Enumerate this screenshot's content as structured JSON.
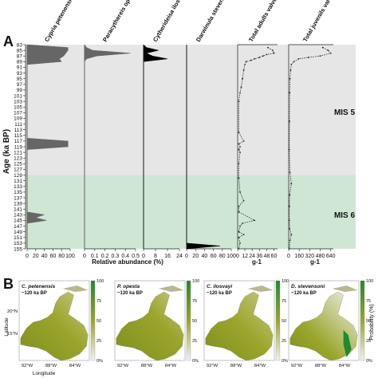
{
  "panel_a": {
    "label": "A",
    "y_axis_label": "Age (ka BP)",
    "x_axis_label_relative": "Relative abundance (%)",
    "x_axis_label_valves_1": "g-1",
    "x_axis_label_valves_2": "g-1",
    "zones": [
      {
        "label": "MIS 5",
        "from": 83,
        "to": 129,
        "color": "#e6e6e6"
      },
      {
        "label": "MIS 6",
        "from": 129,
        "to": 155,
        "color": "#cfe6d4"
      }
    ]
  },
  "panel_b": {
    "label": "B",
    "maps": [
      {
        "species": "C. petenensis",
        "age": "~120 ka BP"
      },
      {
        "species": "P. opesta",
        "age": "~120 ka BP"
      },
      {
        "species": "C. ilosvayi",
        "age": "~120 ka BP"
      },
      {
        "species": "D. stevensoni",
        "age": "~120 ka BP"
      }
    ],
    "lon_ticks": [
      "92°W",
      "88°W",
      "84°W"
    ],
    "lat_ticks": [
      "20°N",
      "15°N"
    ],
    "latitude_label": "Latitude",
    "longitude_label": "Longitude",
    "colorbar_ticks": [
      "100",
      "75",
      "50",
      "25",
      "0%"
    ],
    "colorbar_label": "Probability (%)",
    "colors": {
      "high": "#1f8a2e",
      "mid": "#9aa52a",
      "low": "#f2f2f2",
      "land_high": "#7f8f1f"
    }
  },
  "chart_data": [
    {
      "type": "area",
      "title": "Cypria petenensis",
      "xlabel": "Relative abundance (%)",
      "ylabel": "Age (ka BP)",
      "xticks": [
        "0",
        "20",
        "40",
        "60",
        "80",
        "100"
      ],
      "xlim": [
        0,
        100
      ],
      "ylim": [
        83,
        155
      ],
      "color": "#666666",
      "x": [
        0,
        95,
        95,
        90,
        85,
        75,
        80,
        0,
        0,
        0,
        95,
        95,
        0,
        0,
        0,
        40,
        20,
        45,
        0,
        0
      ],
      "y": [
        83,
        84,
        85,
        86,
        87,
        88,
        89,
        90,
        100,
        116,
        117,
        119,
        120,
        141,
        142,
        143,
        144,
        145,
        146,
        155
      ]
    },
    {
      "type": "area",
      "title": "Paracythereis opesta",
      "xlabel": "Relative abundance (%)",
      "ylabel": "Age (ka BP)",
      "xticks": [
        "0",
        "0.1",
        "0.2",
        "0.3",
        "0.4",
        "0.5"
      ],
      "xlim": [
        0,
        0.5
      ],
      "ylim": [
        83,
        155
      ],
      "color": "#666666",
      "x": [
        0,
        0.02,
        0.08,
        0.45,
        0.12,
        0.02,
        0,
        0
      ],
      "y": [
        83,
        84,
        85,
        86,
        87,
        88,
        89,
        155
      ]
    },
    {
      "type": "area",
      "title": "Cytherideisa ilosvayi",
      "xlabel": "Relative abundance (%)",
      "ylabel": "Age (ka BP)",
      "xticks": [
        "0",
        "8",
        "16",
        "24"
      ],
      "xlim": [
        0,
        24
      ],
      "ylim": [
        83,
        155
      ],
      "color": "#000000",
      "x": [
        0,
        2,
        10,
        2,
        6,
        16,
        0,
        0
      ],
      "y": [
        83,
        84,
        85,
        86,
        87,
        88,
        89,
        155
      ]
    },
    {
      "type": "area",
      "title": "Darwinula stevensoni",
      "xlabel": "Relative abundance (%)",
      "ylabel": "Age (ka BP)",
      "xticks": [
        "0",
        "20",
        "40",
        "60",
        "80",
        "100"
      ],
      "xlim": [
        0,
        100
      ],
      "ylim": [
        83,
        155
      ],
      "color": "#000000",
      "x": [
        0,
        0,
        75,
        0
      ],
      "y": [
        83,
        153,
        154,
        155
      ]
    },
    {
      "type": "line",
      "title": "Total adults valves",
      "xlabel": "g-1",
      "ylabel": "Age (ka BP)",
      "xticks": [
        "0",
        "12",
        "24",
        "36",
        "48",
        "60"
      ],
      "xlim": [
        0,
        66
      ],
      "ylim": [
        83,
        155
      ],
      "color": "#333333",
      "x": [
        50,
        58,
        60,
        48,
        42,
        36,
        28,
        22,
        14,
        12,
        10,
        8,
        6,
        4,
        2,
        2,
        10,
        2,
        4,
        2,
        4,
        2,
        2,
        4,
        10,
        2,
        2,
        28,
        8,
        4,
        2,
        10,
        2,
        4,
        2
      ],
      "y": [
        84,
        85,
        86,
        86.5,
        87,
        87.5,
        88,
        88.5,
        89,
        90,
        92,
        95,
        98,
        100,
        103,
        114,
        117,
        118,
        119,
        120,
        121,
        125,
        130,
        135,
        138,
        140,
        142,
        145,
        146,
        147,
        149,
        150,
        151,
        153,
        155
      ]
    },
    {
      "type": "line",
      "title": "Total juvenils valves",
      "xlabel": "g-1",
      "ylabel": "Age (ka BP)",
      "xticks": [
        "0",
        "160",
        "320",
        "480",
        "640"
      ],
      "xlim": [
        0,
        680
      ],
      "ylim": [
        83,
        155
      ],
      "color": "#333333",
      "x": [
        520,
        600,
        640,
        480,
        300,
        150,
        80,
        40,
        30,
        20,
        15,
        12,
        10,
        20,
        40,
        15,
        10,
        10,
        15,
        40,
        20,
        10
      ],
      "y": [
        84,
        85,
        86,
        87,
        87.5,
        88,
        89,
        90,
        92,
        95,
        100,
        110,
        120,
        128,
        132,
        136,
        140,
        145,
        148,
        150,
        152,
        155
      ]
    }
  ]
}
